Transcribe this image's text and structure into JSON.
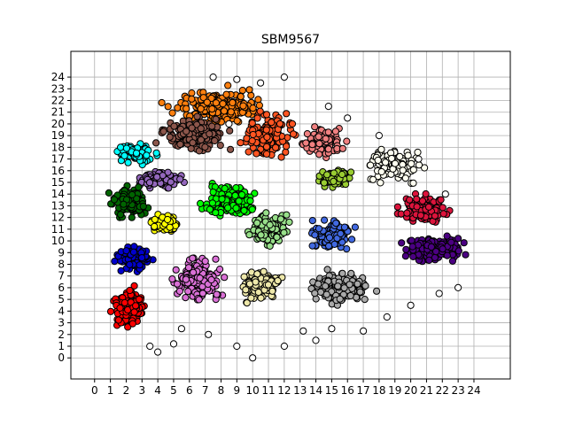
{
  "chart_data": {
    "type": "scatter",
    "title": "SBM9567",
    "xlabel": "",
    "ylabel": "",
    "xlim": [
      -1.5,
      26.3
    ],
    "ylim": [
      -1.8,
      26.2
    ],
    "x_ticks": [
      0,
      1,
      2,
      3,
      4,
      5,
      6,
      7,
      8,
      9,
      10,
      11,
      12,
      13,
      14,
      15,
      16,
      17,
      18,
      19,
      20,
      21,
      22,
      23,
      24
    ],
    "y_ticks": [
      0,
      1,
      2,
      3,
      4,
      5,
      6,
      7,
      8,
      9,
      10,
      11,
      12,
      13,
      14,
      15,
      16,
      17,
      18,
      19,
      20,
      21,
      22,
      23,
      24
    ],
    "grid": true,
    "marker": "circle",
    "marker_edge_color": "#000000",
    "series": [
      {
        "color": "#ff7f0e",
        "center": [
          8.0,
          21.5
        ],
        "spread": [
          4.2,
          2.2
        ],
        "count": 260
      },
      {
        "color": "#8c564b",
        "center": [
          6.2,
          19.0
        ],
        "spread": [
          3.2,
          2.4
        ],
        "count": 170
      },
      {
        "color": "#ff5522",
        "center": [
          11.0,
          19.0
        ],
        "spread": [
          2.5,
          3.0
        ],
        "count": 150
      },
      {
        "color": "#f08080",
        "center": [
          14.5,
          18.5
        ],
        "spread": [
          2.0,
          2.0
        ],
        "count": 90
      },
      {
        "color": "#fffff0",
        "center": [
          19.0,
          16.5
        ],
        "spread": [
          2.8,
          2.2
        ],
        "count": 110
      },
      {
        "color": "#00ffff",
        "center": [
          2.6,
          17.5
        ],
        "spread": [
          1.8,
          1.3
        ],
        "count": 90
      },
      {
        "color": "#9467bd",
        "center": [
          4.2,
          15.3
        ],
        "spread": [
          2.2,
          1.2
        ],
        "count": 90
      },
      {
        "color": "#006400",
        "center": [
          2.2,
          13.2
        ],
        "spread": [
          1.8,
          2.0
        ],
        "count": 130
      },
      {
        "color": "#00ff00",
        "center": [
          8.5,
          13.5
        ],
        "spread": [
          2.5,
          2.2
        ],
        "count": 140
      },
      {
        "color": "#9acd32",
        "center": [
          15.2,
          15.3
        ],
        "spread": [
          1.6,
          1.3
        ],
        "count": 70
      },
      {
        "color": "#dc143c",
        "center": [
          20.8,
          12.8
        ],
        "spread": [
          2.2,
          1.8
        ],
        "count": 130
      },
      {
        "color": "#ffff00",
        "center": [
          4.5,
          11.5
        ],
        "spread": [
          1.6,
          1.3
        ],
        "count": 80
      },
      {
        "color": "#98df8a",
        "center": [
          11.0,
          11.0
        ],
        "spread": [
          2.0,
          2.0
        ],
        "count": 130
      },
      {
        "color": "#4169e1",
        "center": [
          15.0,
          10.5
        ],
        "spread": [
          2.0,
          2.0
        ],
        "count": 130
      },
      {
        "color": "#4b0082",
        "center": [
          21.5,
          9.3
        ],
        "spread": [
          3.0,
          1.6
        ],
        "count": 180
      },
      {
        "color": "#0000cd",
        "center": [
          2.5,
          8.5
        ],
        "spread": [
          1.8,
          1.8
        ],
        "count": 100
      },
      {
        "color": "#da70d6",
        "center": [
          6.6,
          6.8
        ],
        "spread": [
          2.4,
          3.0
        ],
        "count": 170
      },
      {
        "color": "#eee8aa",
        "center": [
          10.5,
          6.2
        ],
        "spread": [
          2.0,
          2.2
        ],
        "count": 130
      },
      {
        "color": "#a9a9a9",
        "center": [
          15.5,
          6.0
        ],
        "spread": [
          3.0,
          2.0
        ],
        "count": 190
      },
      {
        "color": "#ff0000",
        "center": [
          2.2,
          4.2
        ],
        "spread": [
          1.7,
          2.6
        ],
        "count": 150
      }
    ],
    "outliers": [
      [
        10.0,
        0.0
      ],
      [
        9.0,
        1.0
      ],
      [
        12.0,
        1.0
      ],
      [
        14.0,
        1.5
      ],
      [
        4.0,
        0.5
      ],
      [
        5.0,
        1.2
      ],
      [
        13.2,
        2.3
      ],
      [
        15.0,
        2.5
      ],
      [
        17.0,
        2.3
      ],
      [
        18.5,
        3.5
      ],
      [
        20.0,
        4.5
      ],
      [
        21.8,
        5.5
      ],
      [
        23.0,
        6.0
      ],
      [
        22.2,
        14.0
      ],
      [
        20.5,
        17.0
      ],
      [
        18.0,
        19.0
      ],
      [
        16.0,
        20.5
      ],
      [
        14.8,
        21.5
      ],
      [
        12.0,
        24.0
      ],
      [
        10.5,
        23.5
      ],
      [
        9.0,
        23.8
      ],
      [
        7.5,
        24.0
      ],
      [
        8.5,
        20.0
      ],
      [
        7.2,
        2.0
      ],
      [
        5.5,
        2.5
      ],
      [
        3.5,
        1.0
      ]
    ]
  }
}
